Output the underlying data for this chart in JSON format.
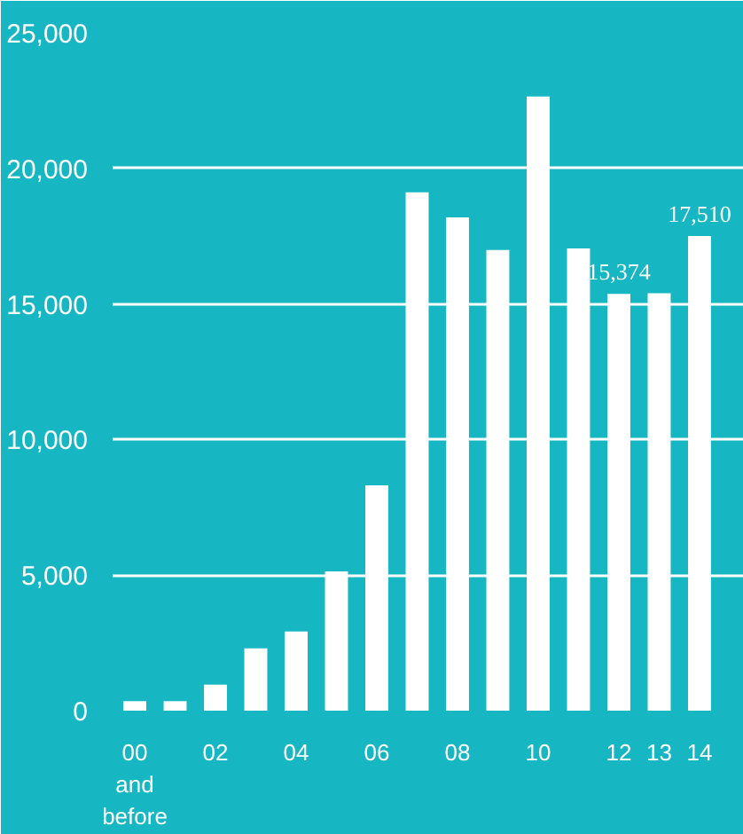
{
  "chart_data": {
    "type": "bar",
    "categories": [
      "00 and before",
      null,
      "02",
      null,
      "04",
      null,
      "06",
      null,
      "08",
      null,
      "10",
      null,
      "12",
      "13",
      "14"
    ],
    "values": [
      350,
      350,
      960,
      2300,
      2920,
      5140,
      8310,
      19120,
      18190,
      16990,
      22650,
      17050,
      15374,
      15400,
      17510
    ],
    "value_labels": [
      null,
      null,
      null,
      null,
      null,
      null,
      null,
      null,
      null,
      null,
      null,
      null,
      "15,374",
      null,
      "17,510"
    ],
    "color": "#ffffff",
    "ylim": [
      0,
      25000
    ],
    "yticks": [
      {
        "value": 0,
        "label": "0"
      },
      {
        "value": 5000,
        "label": "5,000"
      },
      {
        "value": 10000,
        "label": "10,000"
      },
      {
        "value": 15000,
        "label": "15,000"
      },
      {
        "value": 20000,
        "label": "20,000"
      },
      {
        "value": 25000,
        "label": "25,000"
      }
    ],
    "grid": "y"
  }
}
